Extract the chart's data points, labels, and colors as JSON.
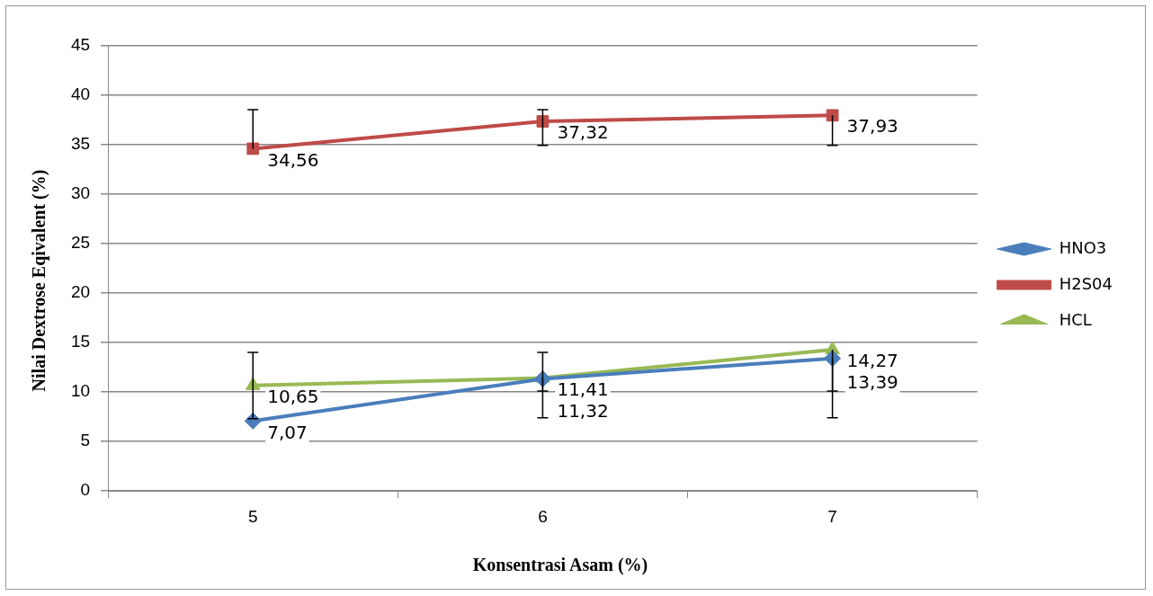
{
  "chart_data": {
    "type": "line",
    "xlabel": "Konsentrasi Asam (%)",
    "ylabel": "Nilai  Dextrose Eqivalent (%)",
    "categories": [
      "5",
      "6",
      "7"
    ],
    "series": [
      {
        "name": "HNO3",
        "color": "#4a7ebb",
        "marker": "diamond",
        "values": [
          7.07,
          11.32,
          13.39
        ],
        "value_labels": [
          "7,07",
          "11,32",
          "13,39"
        ],
        "errors": [
          null,
          [
            7.4,
            14.0
          ],
          [
            7.4,
            13.39
          ]
        ]
      },
      {
        "name": "H2S04",
        "color": "#be4b48",
        "marker": "square",
        "values": [
          34.56,
          37.32,
          37.93
        ],
        "value_labels": [
          "34,56",
          "37,32",
          "37,93"
        ],
        "errors": [
          [
            34.56,
            38.5
          ],
          [
            34.9,
            38.5
          ],
          [
            34.9,
            37.93
          ]
        ]
      },
      {
        "name": "HCL",
        "color": "#98b954",
        "marker": "triangle",
        "values": [
          10.65,
          11.41,
          14.27
        ],
        "value_labels": [
          "10,65",
          "11,41",
          "14,27"
        ],
        "errors": [
          [
            7.3,
            14.0
          ],
          [
            10.1,
            11.41
          ],
          [
            10.1,
            14.27
          ]
        ]
      }
    ],
    "ylim": [
      0,
      45
    ],
    "yticks": [
      0,
      5,
      10,
      15,
      20,
      25,
      30,
      35,
      40,
      45
    ],
    "grid": "y",
    "legend": "right"
  }
}
